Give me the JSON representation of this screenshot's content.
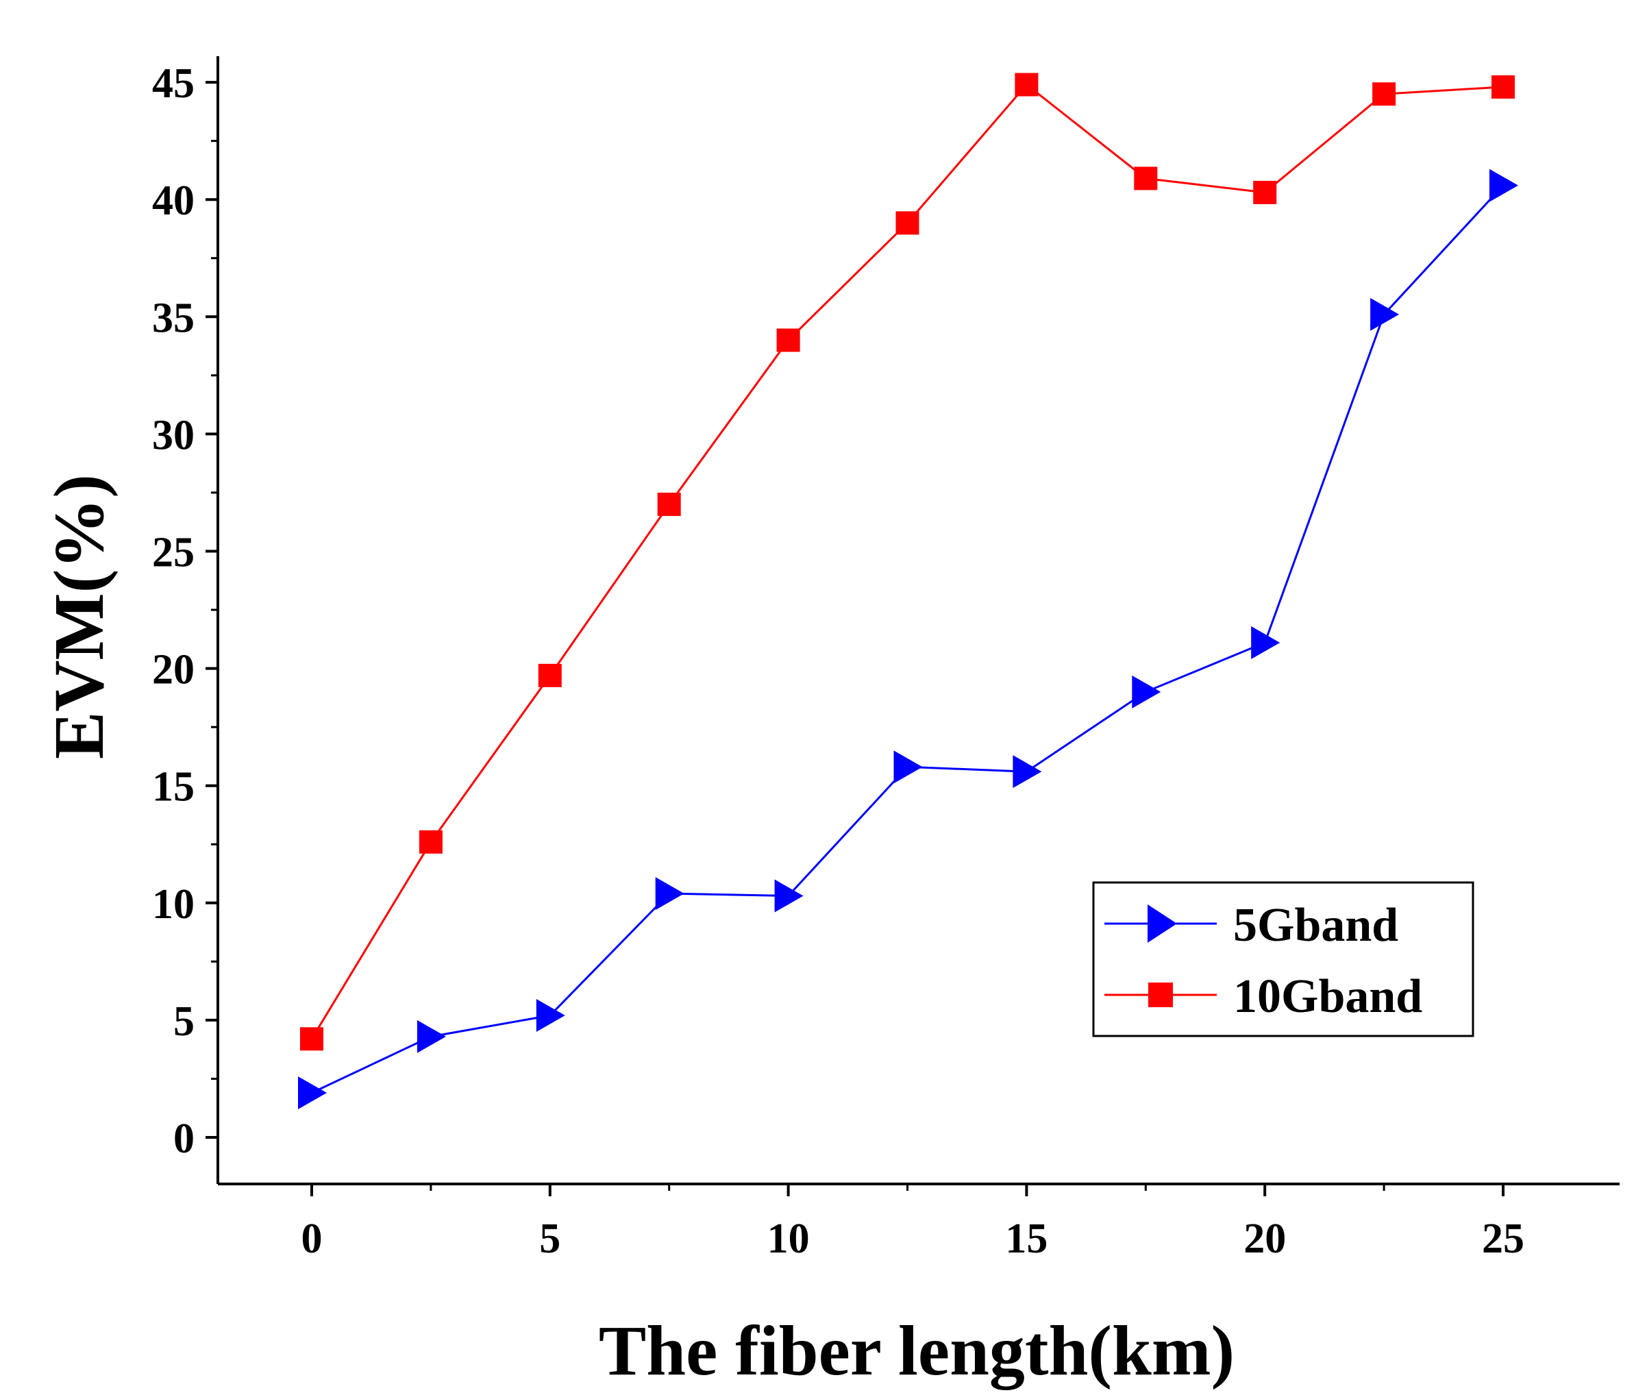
{
  "chart_data": {
    "type": "line",
    "title": "",
    "xlabel": "The fiber length(km)",
    "ylabel": "EVM(%)",
    "xlim": [
      -2,
      27.5
    ],
    "ylim": [
      -2,
      46
    ],
    "x": [
      0,
      2.5,
      5,
      7.5,
      10,
      12.5,
      15,
      17.5,
      20,
      22.5,
      25
    ],
    "xticks": [
      0,
      5,
      10,
      15,
      20,
      25
    ],
    "yticks": [
      0,
      5,
      10,
      15,
      20,
      25,
      30,
      35,
      40,
      45
    ],
    "legend_position": "lower-right",
    "grid": false,
    "series": [
      {
        "name": "5Gband",
        "marker": "triangle-right",
        "color": "#0000ff",
        "values": [
          1.9,
          4.3,
          5.2,
          10.4,
          10.3,
          15.8,
          15.6,
          19.0,
          21.1,
          35.1,
          40.6
        ]
      },
      {
        "name": "10Gband",
        "marker": "square",
        "color": "#ff0000",
        "values": [
          4.2,
          12.6,
          19.7,
          27.0,
          34.0,
          39.0,
          44.9,
          40.9,
          40.3,
          44.5,
          44.8
        ]
      }
    ]
  }
}
